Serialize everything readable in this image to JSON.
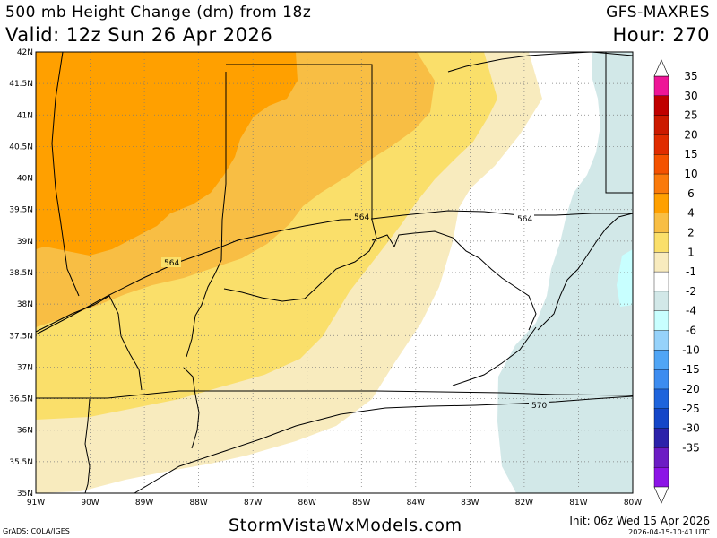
{
  "header": {
    "title": "500 mb Height Change (dm) from 18z",
    "valid": "Valid: 12z Sun 26 Apr 2026",
    "model": "GFS-MAXRES",
    "hour": "Hour: 270"
  },
  "map": {
    "region": "Ohio Valley / Kentucky",
    "lat_labels": [
      "42N",
      "41.5N",
      "41N",
      "40.5N",
      "40N",
      "39.5N",
      "39N",
      "38.5N",
      "38N",
      "37.5N",
      "37N",
      "36.5N",
      "36N",
      "35.5N",
      "35N"
    ],
    "lon_labels": [
      "91W",
      "90W",
      "89W",
      "88W",
      "87W",
      "86W",
      "85W",
      "84W",
      "83W",
      "82W",
      "81W",
      "80W"
    ],
    "contour_labels": [
      "564",
      "564",
      "564",
      "570"
    ],
    "fill_colors": {
      "c6_10": "#ffa000",
      "c4_6": "#f8be44",
      "c2_4": "#fadf6a",
      "c1_2": "#f8ebbe",
      "cneg1_1": "#ffffff",
      "cneg2_neg1": "#d2e8e8",
      "cneg4_neg2": "#c8ffff"
    }
  },
  "colorbar": {
    "labels": [
      "35",
      "30",
      "25",
      "20",
      "15",
      "10",
      "6",
      "4",
      "2",
      "1",
      "-1",
      "-2",
      "-4",
      "-6",
      "-10",
      "-15",
      "-20",
      "-25",
      "-30",
      "-35"
    ],
    "colors": [
      "#ee1597",
      "#c00000",
      "#cc1a00",
      "#e02c00",
      "#f45200",
      "#fa7a0b",
      "#ffa000",
      "#f8be44",
      "#fadf6a",
      "#f8ebbe",
      "#ffffff",
      "#d2e8e8",
      "#c8ffff",
      "#96d2fa",
      "#50a5f5",
      "#3c8cf0",
      "#1e64dc",
      "#1446c8",
      "#2c22aa",
      "#6c1cc4",
      "#8c14e6"
    ]
  },
  "footer": {
    "website": "StormVistaWxModels.com",
    "credit": "GrADS: COLA/IGES",
    "init": "Init: 06z Wed 15 Apr 2026",
    "stamp": "2026-04-15-10:41 UTC"
  }
}
